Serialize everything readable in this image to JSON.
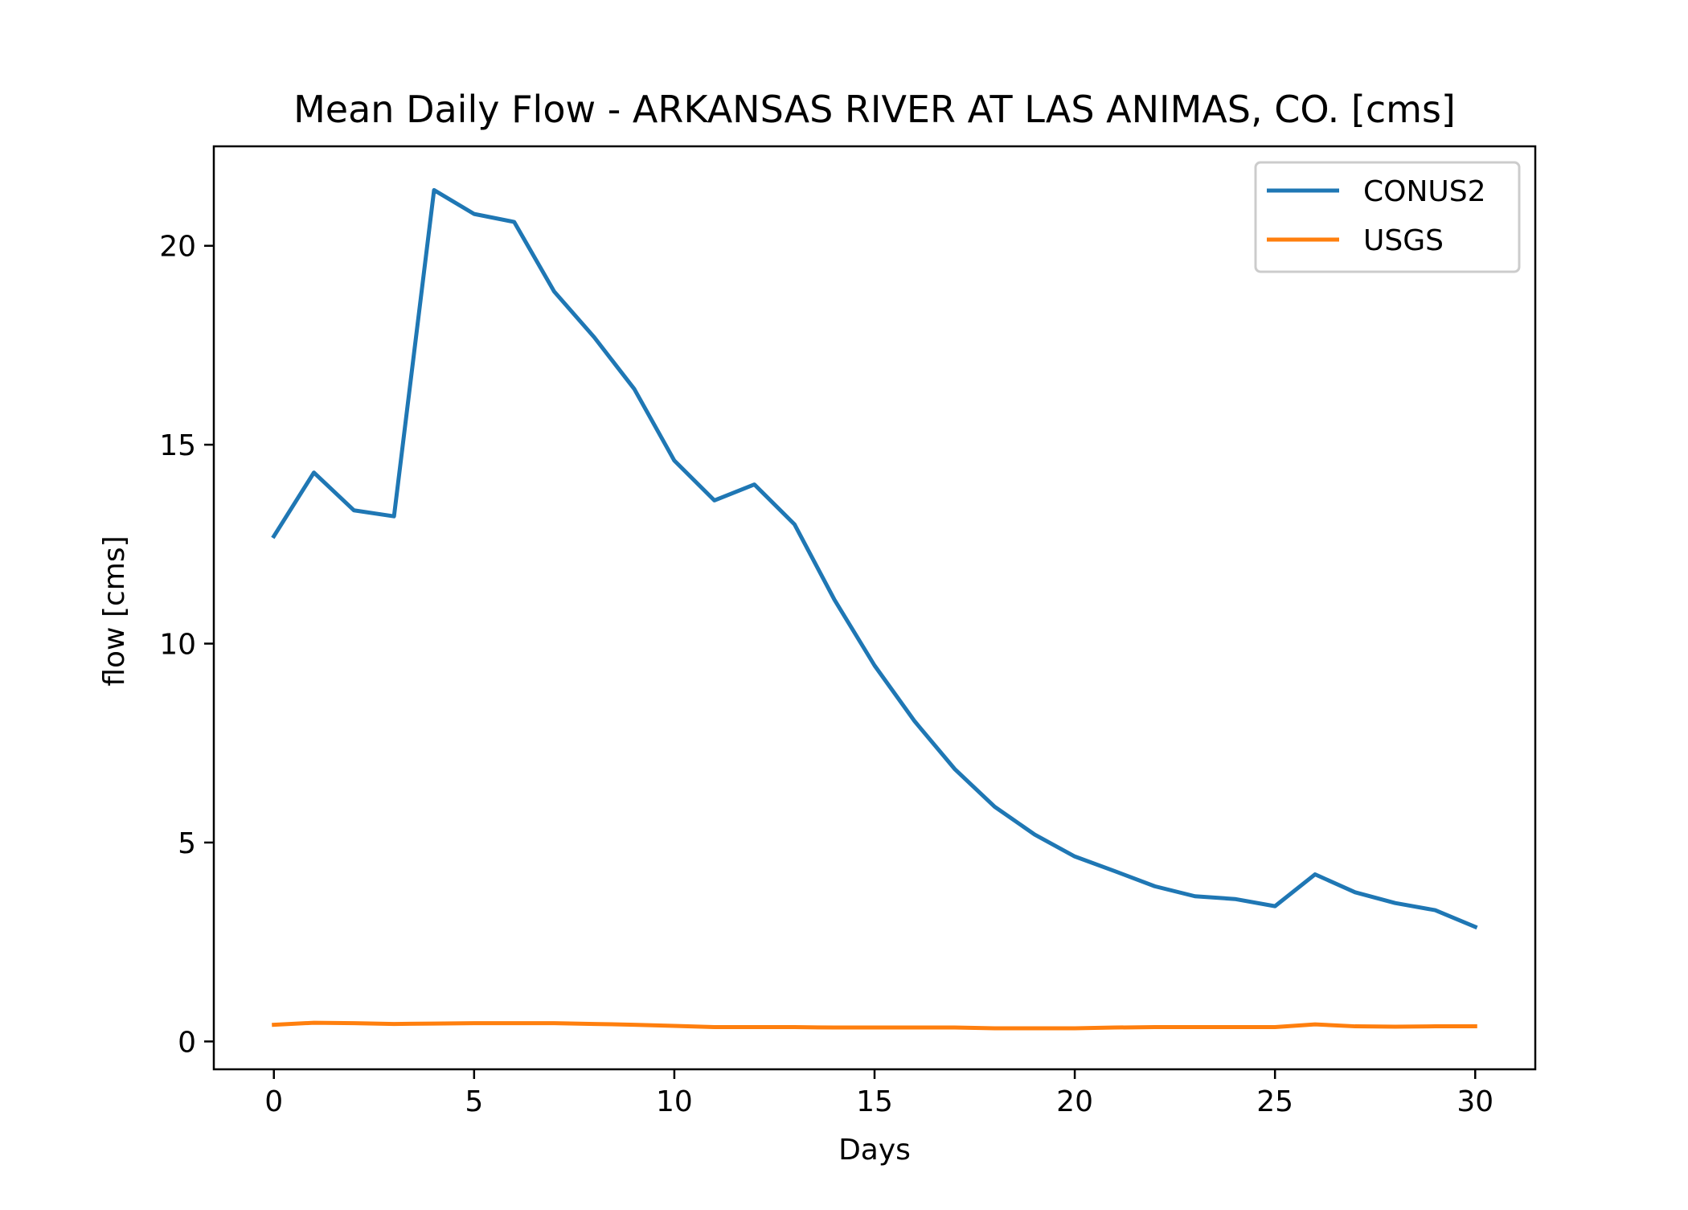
{
  "chart_data": {
    "type": "line",
    "title": "Mean Daily Flow - ARKANSAS RIVER AT LAS ANIMAS, CO. [cms]",
    "xlabel": "Days",
    "ylabel": "flow [cms]",
    "xlim": [
      -1.5,
      31.5
    ],
    "ylim": [
      -0.7,
      22.5
    ],
    "xticks": [
      0,
      5,
      10,
      15,
      20,
      25,
      30
    ],
    "yticks": [
      0,
      5,
      10,
      15,
      20
    ],
    "grid": false,
    "legend_position": "top-right",
    "x": [
      0,
      1,
      2,
      3,
      4,
      5,
      6,
      7,
      8,
      9,
      10,
      11,
      12,
      13,
      14,
      15,
      16,
      17,
      18,
      19,
      20,
      21,
      22,
      23,
      24,
      25,
      26,
      27,
      28,
      29,
      30
    ],
    "series": [
      {
        "name": "CONUS2",
        "color": "#1f77b4",
        "values": [
          12.7,
          14.3,
          13.35,
          13.2,
          21.4,
          20.8,
          20.6,
          18.85,
          17.7,
          16.4,
          14.6,
          13.6,
          14.0,
          13.0,
          11.1,
          9.45,
          8.05,
          6.85,
          5.9,
          5.2,
          4.65,
          4.28,
          3.9,
          3.65,
          3.58,
          3.4,
          4.2,
          3.75,
          3.48,
          3.3,
          2.88
        ]
      },
      {
        "name": "USGS",
        "color": "#ff7f0e",
        "values": [
          0.42,
          0.47,
          0.46,
          0.44,
          0.45,
          0.46,
          0.46,
          0.46,
          0.44,
          0.42,
          0.39,
          0.36,
          0.36,
          0.36,
          0.35,
          0.35,
          0.35,
          0.35,
          0.33,
          0.33,
          0.33,
          0.35,
          0.36,
          0.36,
          0.36,
          0.36,
          0.43,
          0.38,
          0.37,
          0.38,
          0.38
        ]
      }
    ]
  }
}
